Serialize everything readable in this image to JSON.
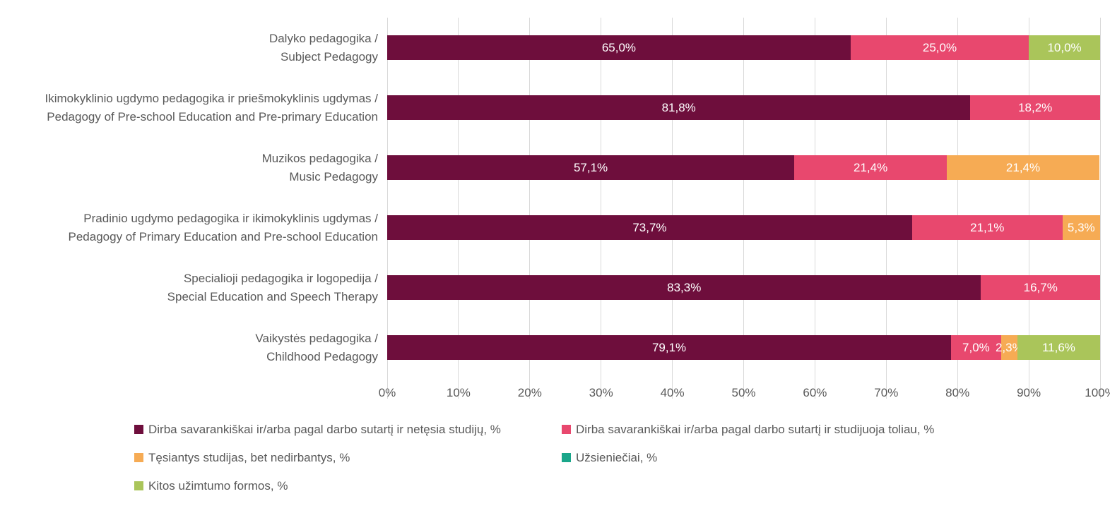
{
  "chart_data": {
    "type": "bar",
    "variant": "horizontal-stacked",
    "unit": "%",
    "xlim": [
      0,
      100
    ],
    "grid": true,
    "legend_position": "bottom",
    "xticks": [
      "0%",
      "10%",
      "20%",
      "30%",
      "40%",
      "50%",
      "60%",
      "70%",
      "80%",
      "90%",
      "100%"
    ],
    "categories": [
      "Dalyko pedagogika /\nSubject Pedagogy",
      "Ikimokyklinio ugdymo pedagogika ir priešmokyklinis ugdymas /\nPedagogy of Pre-school Education and Pre-primary Education",
      "Muzikos pedagogika /\nMusic Pedagogy",
      "Pradinio ugdymo pedagogika ir ikimokyklinis ugdymas /\nPedagogy of Primary Education and Pre-school Education",
      "Specialioji pedagogika ir logopedija /\nSpecial Education and Speech Therapy",
      "Vaikystės pedagogika /\nChildhood Pedagogy"
    ],
    "series": [
      {
        "name": "Dirba savarankiškai ir/arba pagal darbo sutartį ir netęsia studijų, %",
        "color": "#6E0E3C",
        "values": [
          65.0,
          81.8,
          57.1,
          73.7,
          83.3,
          79.1
        ],
        "labels": [
          "65,0%",
          "81,8%",
          "57,1%",
          "73,7%",
          "83,3%",
          "79,1%"
        ]
      },
      {
        "name": "Dirba savarankiškai ir/arba pagal darbo sutartį ir studijuoja toliau, %",
        "color": "#E8486E",
        "values": [
          25.0,
          18.2,
          21.4,
          21.1,
          16.7,
          7.0
        ],
        "labels": [
          "25,0%",
          "18,2%",
          "21,4%",
          "21,1%",
          "16,7%",
          "7,0%"
        ]
      },
      {
        "name": "Tęsiantys studijas, bet nedirbantys, %",
        "color": "#F6AB54",
        "values": [
          0,
          0,
          21.4,
          5.3,
          0,
          2.3
        ],
        "labels": [
          null,
          null,
          "21,4%",
          "5,3%",
          null,
          "2,3%"
        ]
      },
      {
        "name": "Užsieniečiai, %",
        "color": "#1AA68A",
        "values": [
          0,
          0,
          0,
          0,
          0,
          0
        ],
        "labels": [
          null,
          null,
          null,
          null,
          null,
          null
        ]
      },
      {
        "name": "Kitos užimtumo formos, %",
        "color": "#AAC55A",
        "values": [
          10.0,
          0,
          0,
          0,
          0,
          11.6
        ],
        "labels": [
          "10,0%",
          null,
          null,
          null,
          null,
          "11,6%"
        ]
      }
    ],
    "colors": {
      "gridline": "#D9D9D9",
      "axis_text": "#595959",
      "bar_label": "#FFFFFF"
    }
  }
}
